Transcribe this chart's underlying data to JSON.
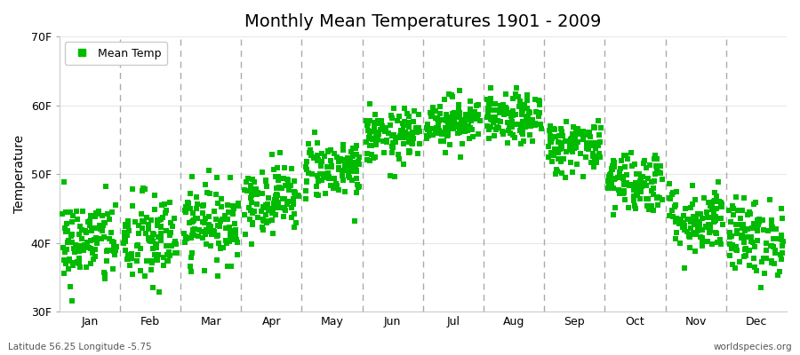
{
  "title": "Monthly Mean Temperatures 1901 - 2009",
  "ylabel": "Temperature",
  "ylim": [
    30,
    70
  ],
  "yticks": [
    30,
    40,
    50,
    60,
    70
  ],
  "ytick_labels": [
    "30F",
    "40F",
    "50F",
    "60F",
    "70F"
  ],
  "month_names": [
    "Jan",
    "Feb",
    "Mar",
    "Apr",
    "May",
    "Jun",
    "Jul",
    "Aug",
    "Sep",
    "Oct",
    "Nov",
    "Dec"
  ],
  "dot_color": "#00BB00",
  "dot_size": 18,
  "background_color": "#ffffff",
  "plot_bg_color": "#ffffff",
  "grid_color": "#e8e8e8",
  "dashed_line_color": "#aaaaaa",
  "legend_label": "Mean Temp",
  "bottom_left_text": "Latitude 56.25 Longitude -5.75",
  "bottom_right_text": "worldspecies.org",
  "monthly_means_f": [
    40.1,
    40.3,
    42.8,
    46.5,
    50.9,
    55.4,
    57.7,
    57.9,
    54.1,
    49.0,
    43.4,
    40.8
  ],
  "monthly_stds_f": [
    3.2,
    3.5,
    2.8,
    2.5,
    2.2,
    2.0,
    1.8,
    1.8,
    2.0,
    2.3,
    2.5,
    2.8
  ],
  "n_years": 109,
  "seed": 42
}
